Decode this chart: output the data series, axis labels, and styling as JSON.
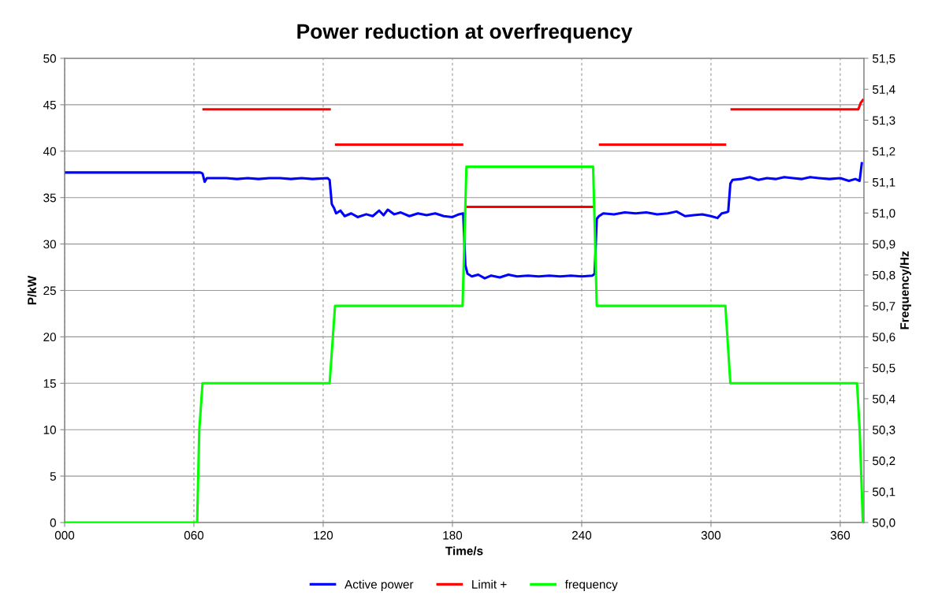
{
  "chart_data": {
    "type": "line",
    "title": "Power reduction at overfrequency",
    "xlabel": "Time/s",
    "ylabel": "P/kW",
    "y2label": "Frequency/Hz",
    "xlim": [
      0,
      371
    ],
    "xticks": [
      {
        "value": 0,
        "label": "000"
      },
      {
        "value": 60,
        "label": "060"
      },
      {
        "value": 120,
        "label": "120"
      },
      {
        "value": 180,
        "label": "180"
      },
      {
        "value": 240,
        "label": "240"
      },
      {
        "value": 300,
        "label": "300"
      },
      {
        "value": 360,
        "label": "360"
      }
    ],
    "ylim": [
      0,
      50
    ],
    "yticks": [
      0,
      5,
      10,
      15,
      20,
      25,
      30,
      35,
      40,
      45,
      50
    ],
    "y2lim": [
      50.0,
      51.5
    ],
    "y2ticks": [
      {
        "value": 50.0,
        "label": "50,0"
      },
      {
        "value": 50.1,
        "label": "50,1"
      },
      {
        "value": 50.2,
        "label": "50,2"
      },
      {
        "value": 50.3,
        "label": "50,3"
      },
      {
        "value": 50.4,
        "label": "50,4"
      },
      {
        "value": 50.5,
        "label": "50,5"
      },
      {
        "value": 50.6,
        "label": "50,6"
      },
      {
        "value": 50.7,
        "label": "50,7"
      },
      {
        "value": 50.8,
        "label": "50,8"
      },
      {
        "value": 50.9,
        "label": "50,9"
      },
      {
        "value": 51.0,
        "label": "51,0"
      },
      {
        "value": 51.1,
        "label": "51,1"
      },
      {
        "value": 51.2,
        "label": "51,2"
      },
      {
        "value": 51.3,
        "label": "51,3"
      },
      {
        "value": 51.4,
        "label": "51,4"
      },
      {
        "value": 51.5,
        "label": "51,5"
      }
    ],
    "grid": true,
    "legend": "bottom",
    "marker": "none",
    "line_style": "solid",
    "series": [
      {
        "name": "Active power",
        "color": "#0000ff",
        "x": [
          0,
          63,
          64,
          65,
          66,
          75,
          80,
          85,
          90,
          95,
          100,
          105,
          110,
          115,
          122,
          123,
          124,
          125,
          126,
          128,
          130,
          133,
          136,
          140,
          143,
          146,
          148,
          150,
          153,
          156,
          160,
          164,
          168,
          172,
          176,
          180,
          183,
          185,
          186,
          187,
          189,
          192,
          195,
          198,
          202,
          206,
          210,
          215,
          220,
          225,
          230,
          235,
          240,
          245,
          246,
          247,
          248,
          250,
          255,
          260,
          265,
          270,
          275,
          280,
          284,
          288,
          292,
          296,
          300,
          303,
          305,
          307,
          308,
          309,
          310,
          314,
          318,
          322,
          326,
          330,
          334,
          338,
          342,
          346,
          350,
          355,
          360,
          364,
          367,
          369,
          370
        ],
        "values": [
          37.7,
          37.7,
          37.6,
          36.7,
          37.1,
          37.1,
          37.0,
          37.1,
          37.0,
          37.1,
          37.1,
          37.0,
          37.1,
          37.0,
          37.1,
          36.9,
          34.3,
          33.9,
          33.3,
          33.6,
          33.0,
          33.3,
          32.9,
          33.2,
          33.0,
          33.6,
          33.1,
          33.7,
          33.2,
          33.4,
          33.0,
          33.3,
          33.1,
          33.3,
          33.0,
          32.9,
          33.2,
          33.3,
          27.7,
          26.8,
          26.5,
          26.7,
          26.3,
          26.6,
          26.4,
          26.7,
          26.5,
          26.6,
          26.5,
          26.6,
          26.5,
          26.6,
          26.5,
          26.6,
          26.8,
          32.7,
          33.0,
          33.3,
          33.2,
          33.4,
          33.3,
          33.4,
          33.2,
          33.3,
          33.5,
          33.0,
          33.1,
          33.2,
          33.0,
          32.8,
          33.3,
          33.4,
          33.5,
          36.5,
          36.9,
          37.0,
          37.2,
          36.9,
          37.1,
          37.0,
          37.2,
          37.1,
          37.0,
          37.2,
          37.1,
          37.0,
          37.1,
          36.8,
          37.0,
          36.8,
          38.7
        ]
      },
      {
        "name": "Limit +",
        "color": "#ff0000",
        "x": [
          64.5,
          123,
          124.5,
          126,
          184.5,
          185.8,
          187,
          245.5,
          246.8,
          248.5,
          306.5,
          308,
          309.6,
          368.4,
          369.5,
          370.5
        ],
        "values": [
          44.5,
          44.5,
          null,
          40.7,
          40.7,
          null,
          34.0,
          34.0,
          null,
          40.7,
          40.7,
          null,
          44.5,
          44.5,
          45.2,
          45.5
        ]
      },
      {
        "name": "frequency",
        "color": "#00ff00",
        "axis": "y2",
        "x": [
          0,
          61.5,
          62.5,
          64,
          123,
          125.5,
          184.7,
          186.5,
          245.3,
          247,
          306.7,
          309,
          367.8,
          369,
          370.5
        ],
        "values": [
          50.0,
          50.0,
          50.3,
          50.45,
          50.45,
          50.7,
          50.7,
          51.15,
          51.15,
          50.7,
          50.7,
          50.45,
          50.45,
          50.3,
          50.0
        ]
      }
    ]
  }
}
